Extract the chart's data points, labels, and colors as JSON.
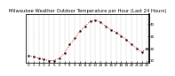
{
  "title": "Milwaukee Weather Outdoor Temperature per Hour (Last 24 Hours)",
  "hours": [
    0,
    1,
    2,
    3,
    4,
    5,
    6,
    7,
    8,
    9,
    10,
    11,
    12,
    13,
    14,
    15,
    16,
    17,
    18,
    19,
    20,
    21,
    22,
    23
  ],
  "temps": [
    14,
    13,
    12,
    11,
    10,
    10,
    12,
    16,
    23,
    28,
    34,
    38,
    42,
    43,
    41,
    38,
    35,
    33,
    30,
    27,
    23,
    20,
    17,
    20
  ],
  "ylim": [
    8,
    48
  ],
  "yticks": [
    10,
    20,
    30,
    40
  ],
  "line_color": "red",
  "marker_color": "black",
  "bg_color": "white",
  "grid_color": "#999999",
  "title_fontsize": 3.8,
  "tick_fontsize": 3.0,
  "linewidth": 0.7,
  "markersize": 1.1
}
